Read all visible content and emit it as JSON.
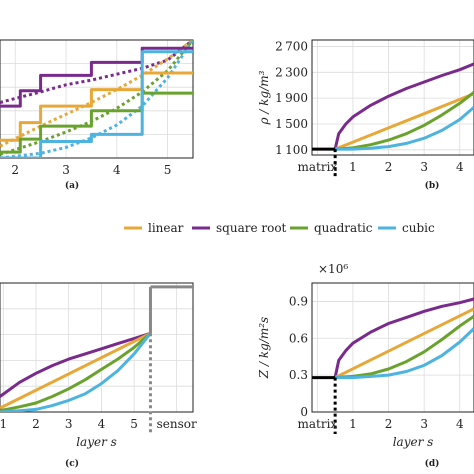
{
  "legend": {
    "items": [
      {
        "name": "linear",
        "color": "#e8a838"
      },
      {
        "name": "square root",
        "color": "#7a2a8c"
      },
      {
        "name": "quadratic",
        "color": "#6aa22e"
      },
      {
        "name": "cubic",
        "color": "#4db3e0"
      }
    ]
  },
  "chart_data": [
    {
      "type": "line",
      "panel": "a",
      "caption": "(a)",
      "xlabel": "",
      "ylabel": "",
      "xticks": [
        2,
        3,
        4,
        5
      ],
      "xlim": [
        1.7,
        5.5
      ],
      "ylim": [
        0,
        1
      ],
      "series": [
        {
          "name": "square root",
          "x": [
            1.7,
            2.1,
            2.1,
            2.5,
            2.5,
            3.5,
            3.5,
            4.5,
            4.5,
            5.5
          ],
          "y": [
            0.44,
            0.44,
            0.57,
            0.57,
            0.7,
            0.7,
            0.81,
            0.81,
            0.93,
            0.93
          ]
        },
        {
          "name": "linear",
          "x": [
            1.7,
            2.1,
            2.1,
            2.5,
            2.5,
            3.5,
            3.5,
            4.5,
            4.5,
            5.5
          ],
          "y": [
            0.15,
            0.15,
            0.3,
            0.3,
            0.44,
            0.44,
            0.58,
            0.58,
            0.72,
            0.72
          ]
        },
        {
          "name": "quadratic",
          "x": [
            1.7,
            2.1,
            2.1,
            2.5,
            2.5,
            3.5,
            3.5,
            4.5,
            4.5,
            5.5
          ],
          "y": [
            0.05,
            0.05,
            0.16,
            0.16,
            0.27,
            0.27,
            0.4,
            0.4,
            0.55,
            0.55
          ]
        },
        {
          "name": "cubic",
          "x": [
            1.7,
            2.5,
            2.5,
            3.5,
            3.5,
            4.5,
            4.5,
            5.5
          ],
          "y": [
            0.0,
            0.0,
            0.14,
            0.14,
            0.2,
            0.2,
            0.9,
            0.9
          ]
        }
      ],
      "dotted_series": [
        {
          "name": "square root",
          "x": [
            1.7,
            2.5,
            3.0,
            3.5,
            4.0,
            4.5,
            5.0,
            5.5
          ],
          "y": [
            0.47,
            0.56,
            0.62,
            0.66,
            0.71,
            0.76,
            0.83,
            1.0
          ]
        },
        {
          "name": "linear",
          "x": [
            1.7,
            2.5,
            3.0,
            3.5,
            4.0,
            4.5,
            5.0,
            5.5
          ],
          "y": [
            0.1,
            0.27,
            0.37,
            0.47,
            0.58,
            0.7,
            0.84,
            1.0
          ]
        },
        {
          "name": "quadratic",
          "x": [
            1.7,
            2.5,
            3.0,
            3.5,
            4.0,
            4.5,
            5.0,
            5.5
          ],
          "y": [
            0.03,
            0.14,
            0.22,
            0.31,
            0.42,
            0.56,
            0.74,
            1.0
          ]
        },
        {
          "name": "cubic",
          "x": [
            1.7,
            2.5,
            3.0,
            3.5,
            4.0,
            4.5,
            5.0,
            5.5
          ],
          "y": [
            0.0,
            0.04,
            0.09,
            0.17,
            0.28,
            0.44,
            0.68,
            1.0
          ]
        }
      ]
    },
    {
      "type": "line",
      "panel": "b",
      "caption": "(b)",
      "xlabel": "",
      "ylabel": "ρ / kg/m³",
      "xtick_labels": [
        "matrix",
        "1",
        "2",
        "3",
        "4"
      ],
      "xticks": [
        0,
        1,
        2,
        3,
        4
      ],
      "yticks": [
        1100,
        1500,
        1900,
        2300,
        2700
      ],
      "xlim": [
        -0.15,
        4.4
      ],
      "ylim": [
        1020,
        2800
      ],
      "matrix_level": {
        "x": [
          -0.15,
          0.5
        ],
        "y": 1110
      },
      "series": [
        {
          "name": "square root",
          "x": [
            0.5,
            0.6,
            0.8,
            1.0,
            1.5,
            2.0,
            2.5,
            3.0,
            3.5,
            4.0,
            4.4
          ],
          "y": [
            1110,
            1350,
            1500,
            1610,
            1790,
            1930,
            2050,
            2150,
            2250,
            2340,
            2430
          ]
        },
        {
          "name": "linear",
          "x": [
            0.5,
            1.0,
            2.0,
            3.0,
            4.0,
            4.4
          ],
          "y": [
            1110,
            1220,
            1440,
            1660,
            1880,
            1970
          ]
        },
        {
          "name": "quadratic",
          "x": [
            0.5,
            1.0,
            1.5,
            2.0,
            2.5,
            3.0,
            3.5,
            4.0,
            4.4
          ],
          "y": [
            1110,
            1130,
            1180,
            1250,
            1350,
            1480,
            1640,
            1820,
            1990
          ]
        },
        {
          "name": "cubic",
          "x": [
            0.5,
            1.0,
            1.5,
            2.0,
            2.5,
            3.0,
            3.5,
            4.0,
            4.4
          ],
          "y": [
            1110,
            1112,
            1125,
            1150,
            1200,
            1280,
            1400,
            1570,
            1760
          ]
        }
      ]
    },
    {
      "type": "line",
      "panel": "c",
      "caption": "(c)",
      "xlabel": "layer s",
      "ylabel": "",
      "xtick_labels": [
        "1",
        "2",
        "3",
        "4",
        "5",
        "sensor"
      ],
      "xticks": [
        1,
        2,
        3,
        4,
        5,
        6.3
      ],
      "xlim": [
        0.9,
        6.8
      ],
      "ylim": [
        0,
        1
      ],
      "sensor_level": {
        "x": [
          5.5,
          6.8
        ],
        "y": 0.97
      },
      "series": [
        {
          "name": "square root",
          "x": [
            0.9,
            1.5,
            2.0,
            2.5,
            3.0,
            3.5,
            4.0,
            4.5,
            5.0,
            5.5
          ],
          "y": [
            0.12,
            0.23,
            0.3,
            0.36,
            0.41,
            0.45,
            0.49,
            0.53,
            0.57,
            0.61
          ]
        },
        {
          "name": "linear",
          "x": [
            0.9,
            5.5
          ],
          "y": [
            0.03,
            0.61
          ]
        },
        {
          "name": "quadratic",
          "x": [
            0.9,
            1.5,
            2.0,
            2.5,
            3.0,
            3.5,
            4.0,
            4.5,
            5.0,
            5.5
          ],
          "y": [
            0.01,
            0.04,
            0.07,
            0.12,
            0.18,
            0.25,
            0.33,
            0.41,
            0.5,
            0.61
          ]
        },
        {
          "name": "cubic",
          "x": [
            0.9,
            1.5,
            2.0,
            2.5,
            3.0,
            3.5,
            4.0,
            4.5,
            5.0,
            5.5
          ],
          "y": [
            0.0,
            0.01,
            0.02,
            0.05,
            0.09,
            0.14,
            0.22,
            0.32,
            0.45,
            0.61
          ]
        }
      ]
    },
    {
      "type": "line",
      "panel": "d",
      "caption": "(d)",
      "xlabel": "layer s",
      "ylabel": "Z / kg/m²s",
      "yscale_label": "×10⁶",
      "xtick_labels": [
        "matrix",
        "1",
        "2",
        "3",
        "4"
      ],
      "xticks": [
        0,
        1,
        2,
        3,
        4
      ],
      "yticks": [
        0,
        0.3,
        0.6,
        0.9
      ],
      "ytick_labels": [
        "0",
        "0.3",
        "0.6",
        "0.9"
      ],
      "xlim": [
        -0.15,
        4.4
      ],
      "ylim": [
        0,
        1.05
      ],
      "matrix_level": {
        "x": [
          -0.15,
          0.5
        ],
        "y": 0.28
      },
      "series": [
        {
          "name": "square root",
          "x": [
            0.5,
            0.6,
            0.8,
            1.0,
            1.5,
            2.0,
            2.5,
            3.0,
            3.5,
            4.0,
            4.4
          ],
          "y": [
            0.28,
            0.42,
            0.5,
            0.56,
            0.65,
            0.72,
            0.77,
            0.82,
            0.86,
            0.89,
            0.92
          ]
        },
        {
          "name": "linear",
          "x": [
            0.5,
            4.4
          ],
          "y": [
            0.28,
            0.84
          ]
        },
        {
          "name": "quadratic",
          "x": [
            0.5,
            1.0,
            1.5,
            2.0,
            2.5,
            3.0,
            3.5,
            4.0,
            4.4
          ],
          "y": [
            0.28,
            0.29,
            0.31,
            0.35,
            0.41,
            0.49,
            0.59,
            0.7,
            0.78
          ]
        },
        {
          "name": "cubic",
          "x": [
            0.5,
            1.0,
            1.5,
            2.0,
            2.5,
            3.0,
            3.5,
            4.0,
            4.4
          ],
          "y": [
            0.28,
            0.28,
            0.29,
            0.3,
            0.33,
            0.38,
            0.46,
            0.57,
            0.68
          ]
        }
      ]
    }
  ]
}
